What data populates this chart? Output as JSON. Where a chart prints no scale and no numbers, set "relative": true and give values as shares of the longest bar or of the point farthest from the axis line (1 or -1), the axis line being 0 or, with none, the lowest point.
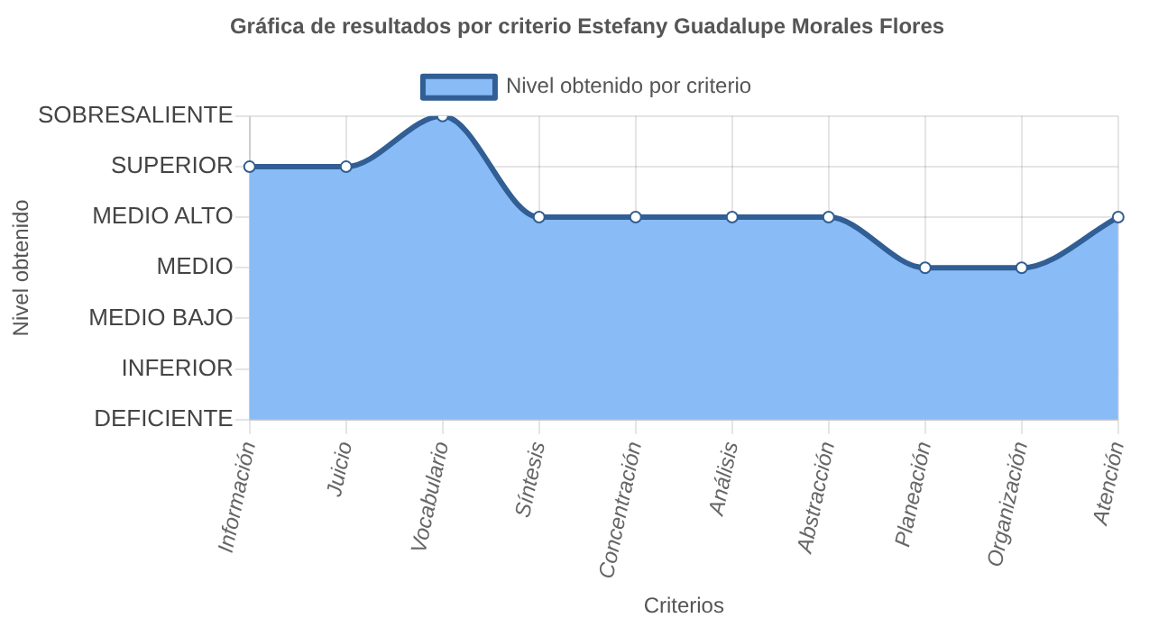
{
  "chart_data": {
    "type": "area",
    "title": "Gráfica de resultados por criterio Estefany Guadalupe Morales Flores",
    "xlabel": "Criterios",
    "categories": [
      "Información",
      "Juicio",
      "Vocabulario",
      "Síntesis",
      "Concentración",
      "Análisis",
      "Abstracción",
      "Planeación",
      "Organización",
      "Atención"
    ],
    "series": [
      {
        "name": "Nivel obtenido por criterio",
        "color": "#89bbf6",
        "values": [
          0.833,
          0.833,
          1,
          0.667,
          0.667,
          0.667,
          0.667,
          0.5,
          0.5,
          0.667
        ]
      }
    ],
    "relative": true,
    "annotations": [
      "Nivel obtenido",
      "DEFICIENTE",
      "INFERIOR",
      "MEDIO BAJO",
      "MEDIO",
      "MEDIO ALTO",
      "SUPERIOR",
      "SOBRESALIENTE"
    ],
    "grid": true,
    "legend": "top",
    "marker": "circle",
    "line_style": "solid"
  }
}
